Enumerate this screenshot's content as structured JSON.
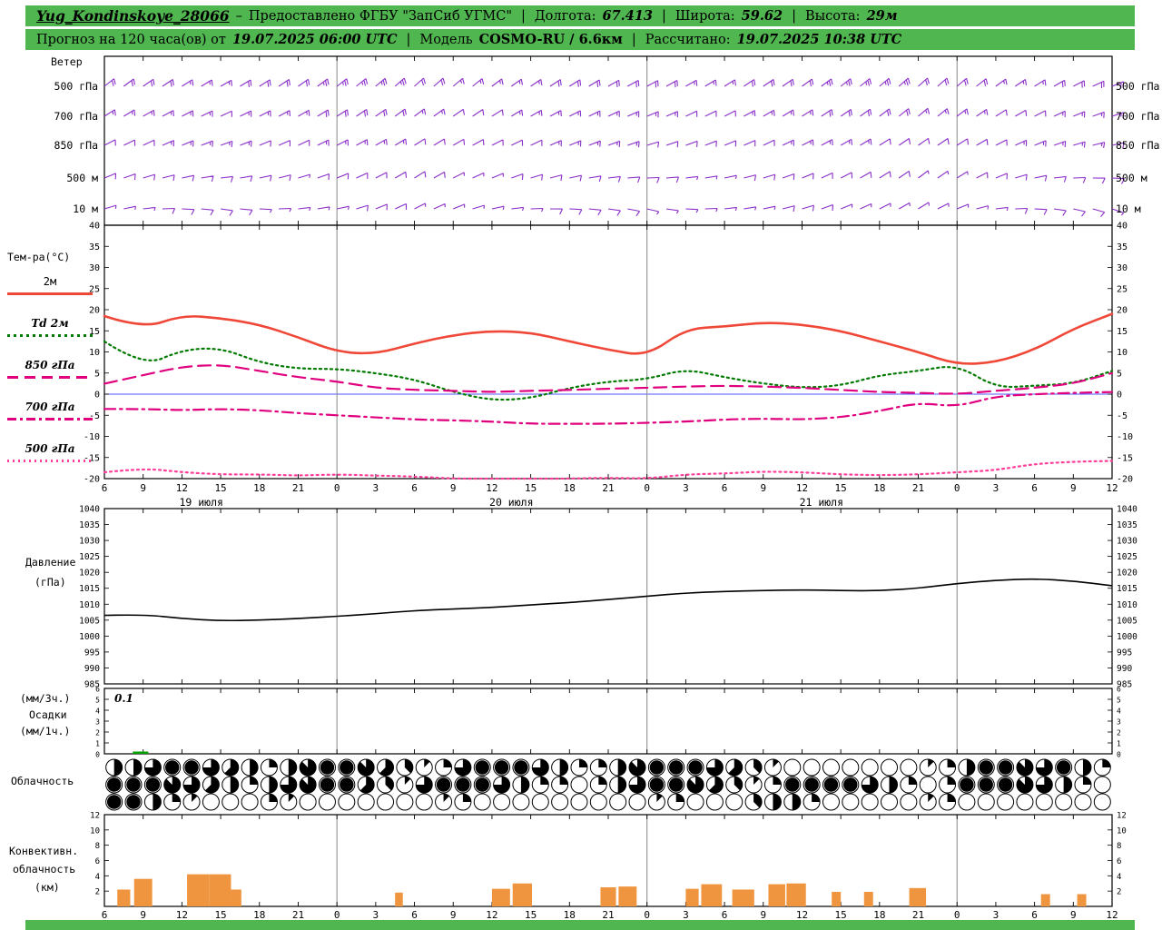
{
  "header": {
    "station": "Yug_Kondinskoye_28066",
    "dash": "–",
    "provider": "Предоставлено ФГБУ \"ЗапСиб УГМС\"",
    "pipe": "|",
    "lon_label": "Долгота:",
    "lon_value": "67.413",
    "lat_label": "Широта:",
    "lat_value": "59.62",
    "alt_label": "Высота:",
    "alt_value": "29м"
  },
  "subheader": {
    "forecast_label": "Прогноз на 120 часа(ов) от",
    "run_time": "19.07.2025 06:00 UTC",
    "pipe": "|",
    "model_label": "Модель",
    "model_value": "COSMO-RU / 6.6км",
    "calc_label": "Рассчитано:",
    "calc_value": "19.07.2025 10:38 UTC"
  },
  "panels": {
    "wind": {
      "title": "Ветер",
      "levels": [
        "500 гПа",
        "700 гПа",
        "850 гПа",
        "500 м",
        "10 м"
      ]
    },
    "temp": {
      "title": "Тем-ра(°C)",
      "legend": [
        "2м",
        "Td 2м",
        "850 гПа",
        "700 гПа",
        "500 гПа"
      ]
    },
    "pressure": {
      "title_line1": "Давление",
      "title_line2": "(гПа)"
    },
    "precip": {
      "label_line1": "(мм/3ч.)",
      "label_line2": "Осадки",
      "label_line3": "(мм/1ч.)",
      "max_annotation": "0.1"
    },
    "cloud": {
      "title": "Облачность"
    },
    "conv": {
      "title_line1": "Конвективн.",
      "title_line2": "облачность",
      "title_line3": "(км)"
    }
  },
  "colors": {
    "header_bg": "#50b650",
    "wind_barb": "#8b2fc9",
    "t2m": "#f04838",
    "td2m": "#007a00",
    "t850": "#e0007f",
    "t700": "#e0007f",
    "t500": "#ff3d9a",
    "pressure": "#000000",
    "precip": "#00a000",
    "conv": "#f0953f",
    "zero_line": "#5050ff",
    "grid": "#888888"
  },
  "x_axis": {
    "span_hours": 78,
    "hours": [
      0,
      3,
      6,
      9,
      12,
      15,
      18,
      21,
      24,
      27,
      30,
      33,
      36,
      39,
      42,
      45,
      48,
      51,
      54,
      57,
      60,
      63,
      66,
      69,
      72,
      75,
      78
    ],
    "tick_labels": [
      "6",
      "9",
      "12",
      "15",
      "18",
      "21",
      "0",
      "3",
      "6",
      "9",
      "12",
      "15",
      "18",
      "21",
      "0",
      "3",
      "6",
      "9",
      "12",
      "15",
      "18",
      "21",
      "0",
      "3",
      "6",
      "9",
      "12"
    ],
    "date_labels": [
      {
        "text": "19 июля",
        "hour": 7.5
      },
      {
        "text": "20 июля",
        "hour": 31.5
      },
      {
        "text": "21 июля",
        "hour": 55.5
      }
    ]
  },
  "chart_data": [
    {
      "type": "wind-barbs",
      "title": "Ветер",
      "levels": [
        "500 гПа",
        "700 гПа",
        "850 гПа",
        "500 м",
        "10 м"
      ],
      "series": [
        {
          "level": "500 гПа",
          "dir_deg": [
            52,
            55,
            58,
            60,
            58,
            55,
            52,
            50,
            48,
            50,
            53,
            56,
            58,
            60,
            62,
            60,
            58,
            56,
            54,
            52,
            50,
            48,
            50,
            54,
            58,
            63,
            68
          ],
          "speed_kt": [
            20,
            20,
            15,
            15,
            20,
            20,
            25,
            25,
            20,
            15,
            15,
            15,
            20,
            20,
            20,
            15,
            15,
            20,
            20,
            25,
            25,
            20,
            20,
            15,
            15,
            20,
            20
          ]
        },
        {
          "level": "700 гПа",
          "dir_deg": [
            58,
            60,
            63,
            65,
            63,
            60,
            58,
            55,
            53,
            55,
            58,
            60,
            63,
            65,
            68,
            65,
            63,
            60,
            58,
            56,
            53,
            50,
            53,
            58,
            63,
            68,
            72
          ],
          "speed_kt": [
            15,
            15,
            15,
            10,
            15,
            15,
            20,
            20,
            15,
            10,
            10,
            15,
            15,
            15,
            15,
            10,
            10,
            15,
            15,
            20,
            20,
            15,
            15,
            10,
            10,
            15,
            15
          ]
        },
        {
          "level": "850 гПа",
          "dir_deg": [
            63,
            65,
            68,
            70,
            68,
            65,
            63,
            60,
            58,
            60,
            63,
            65,
            68,
            70,
            73,
            70,
            68,
            65,
            63,
            60,
            58,
            55,
            58,
            63,
            68,
            73,
            78
          ],
          "speed_kt": [
            10,
            10,
            15,
            15,
            10,
            10,
            15,
            15,
            10,
            10,
            10,
            10,
            15,
            15,
            10,
            10,
            10,
            10,
            15,
            15,
            10,
            10,
            10,
            10,
            15,
            15,
            10
          ]
        },
        {
          "level": "500 м",
          "dir_deg": [
            68,
            73,
            78,
            83,
            78,
            73,
            68,
            63,
            58,
            63,
            68,
            73,
            78,
            83,
            88,
            83,
            78,
            73,
            68,
            63,
            58,
            53,
            58,
            68,
            78,
            88,
            93
          ],
          "speed_kt": [
            10,
            10,
            10,
            10,
            10,
            5,
            10,
            10,
            10,
            5,
            5,
            10,
            10,
            10,
            10,
            5,
            5,
            10,
            10,
            10,
            10,
            5,
            5,
            10,
            10,
            10,
            10
          ]
        },
        {
          "level": "10 м",
          "dir_deg": [
            73,
            83,
            93,
            98,
            93,
            83,
            78,
            68,
            63,
            68,
            78,
            88,
            93,
            98,
            103,
            93,
            83,
            78,
            73,
            68,
            63,
            58,
            68,
            83,
            93,
            103,
            108
          ],
          "speed_kt": [
            5,
            5,
            10,
            10,
            5,
            5,
            5,
            10,
            5,
            5,
            5,
            5,
            10,
            10,
            5,
            5,
            5,
            5,
            10,
            5,
            5,
            5,
            5,
            5,
            10,
            10,
            5
          ]
        }
      ]
    },
    {
      "type": "line",
      "title": "Тем-ра(°C)",
      "ylim": [
        -20,
        40
      ],
      "ytick_step": 5,
      "series": [
        {
          "name": "2м",
          "color": "t2m",
          "dash": "solid",
          "width": 2.6,
          "values": [
            18.5,
            15.5,
            18.7,
            18.0,
            16.5,
            13.5,
            10.0,
            9.5,
            12.0,
            14.0,
            15.0,
            14.6,
            12.5,
            10.5,
            9.0,
            15.5,
            16.0,
            17.0,
            16.5,
            15.0,
            12.5,
            10.0,
            7.0,
            7.5,
            10.5,
            15.5,
            19.0
          ]
        },
        {
          "name": "Td 2м",
          "color": "td2m",
          "dash": "dotted",
          "width": 2.2,
          "values": [
            12.5,
            6.5,
            10.5,
            11.0,
            7.5,
            6.0,
            6.0,
            5.0,
            3.5,
            0.5,
            -1.5,
            -1.0,
            1.5,
            3.0,
            3.5,
            6.0,
            4.0,
            2.5,
            1.5,
            2.0,
            4.5,
            5.5,
            7.0,
            1.5,
            2.0,
            2.5,
            5.5
          ]
        },
        {
          "name": "850 гПа",
          "color": "t850",
          "dash": "longdash",
          "width": 2.2,
          "values": [
            2.5,
            4.5,
            6.5,
            7.0,
            5.5,
            4.0,
            3.0,
            1.5,
            1.0,
            0.8,
            0.5,
            0.8,
            1.0,
            1.3,
            1.5,
            1.8,
            2.0,
            1.8,
            1.5,
            1.0,
            0.5,
            0.3,
            0.0,
            0.8,
            1.5,
            2.5,
            5.0
          ]
        },
        {
          "name": "700 гПа",
          "color": "t700",
          "dash": "dashdot",
          "width": 2.2,
          "values": [
            -3.5,
            -3.5,
            -3.8,
            -3.5,
            -3.8,
            -4.5,
            -5.0,
            -5.5,
            -6.0,
            -6.2,
            -6.5,
            -7.0,
            -7.0,
            -7.0,
            -6.8,
            -6.5,
            -6.0,
            -5.8,
            -6.0,
            -5.5,
            -4.0,
            -2.0,
            -3.0,
            -0.5,
            0.0,
            0.3,
            0.5
          ]
        },
        {
          "name": "500 гПа",
          "color": "t500",
          "dash": "finedot",
          "width": 2.2,
          "values": [
            -18.5,
            -17.5,
            -18.5,
            -19.0,
            -19.0,
            -19.3,
            -19.0,
            -19.3,
            -19.5,
            -20.0,
            -20.0,
            -20.0,
            -20.0,
            -19.8,
            -20.0,
            -19.0,
            -18.8,
            -18.3,
            -18.5,
            -19.0,
            -19.2,
            -19.0,
            -18.5,
            -18.0,
            -16.5,
            -16.0,
            -15.8
          ]
        }
      ]
    },
    {
      "type": "line",
      "title": "Давление (гПа)",
      "ylim": [
        985,
        1040
      ],
      "ytick_step": 5,
      "series": [
        {
          "name": "Давление",
          "color": "pressure",
          "dash": "solid",
          "width": 1.6,
          "values": [
            1006.5,
            1006.8,
            1005.5,
            1004.8,
            1005.0,
            1005.5,
            1006.2,
            1007.0,
            1008.0,
            1008.5,
            1009.0,
            1009.8,
            1010.5,
            1011.5,
            1012.5,
            1013.5,
            1014.0,
            1014.3,
            1014.5,
            1014.3,
            1014.2,
            1015.0,
            1016.5,
            1017.5,
            1018.0,
            1017.3,
            1015.8
          ]
        }
      ]
    },
    {
      "type": "bar",
      "title": "Осадки (мм/3ч., мм/1ч.)",
      "ylim": [
        0,
        6
      ],
      "ytick_step": 1,
      "annotation": "0.1",
      "bars": [
        {
          "h": 2.2,
          "w": 1.2,
          "mm": 0.1
        }
      ]
    },
    {
      "type": "cloud-symbols",
      "title": "Облачность",
      "rows_octas": [
        "4468865424788753126888642247888653100000001248876842",
        "8887654246788531688864220246887531288886420288876420",
        "8842100021000000012000000000120003442000001200000000"
      ]
    },
    {
      "type": "bar",
      "title": "Конвективная облачность (км)",
      "ylim": [
        0,
        12
      ],
      "ytick_step": 2,
      "bars": [
        {
          "h": 1.0,
          "w": 1.0,
          "km": 2.2
        },
        {
          "h": 2.3,
          "w": 1.4,
          "km": 3.6
        },
        {
          "h": 6.4,
          "w": 1.7,
          "km": 4.2
        },
        {
          "h": 8.1,
          "w": 1.7,
          "km": 4.2
        },
        {
          "h": 9.8,
          "w": 0.8,
          "km": 2.2
        },
        {
          "h": 22.5,
          "w": 0.6,
          "km": 1.8
        },
        {
          "h": 30.0,
          "w": 1.4,
          "km": 2.3
        },
        {
          "h": 31.6,
          "w": 1.5,
          "km": 3.0
        },
        {
          "h": 38.4,
          "w": 1.2,
          "km": 2.5
        },
        {
          "h": 39.8,
          "w": 1.4,
          "km": 2.6
        },
        {
          "h": 45.0,
          "w": 1.0,
          "km": 2.3
        },
        {
          "h": 46.2,
          "w": 1.6,
          "km": 2.9
        },
        {
          "h": 48.6,
          "w": 1.7,
          "km": 2.2
        },
        {
          "h": 51.4,
          "w": 1.3,
          "km": 2.9
        },
        {
          "h": 52.8,
          "w": 1.5,
          "km": 3.0
        },
        {
          "h": 56.3,
          "w": 0.7,
          "km": 1.9
        },
        {
          "h": 58.8,
          "w": 0.7,
          "km": 1.9
        },
        {
          "h": 62.3,
          "w": 1.3,
          "km": 2.4
        },
        {
          "h": 72.5,
          "w": 0.7,
          "km": 1.6
        },
        {
          "h": 75.3,
          "w": 0.7,
          "km": 1.6
        }
      ]
    }
  ]
}
